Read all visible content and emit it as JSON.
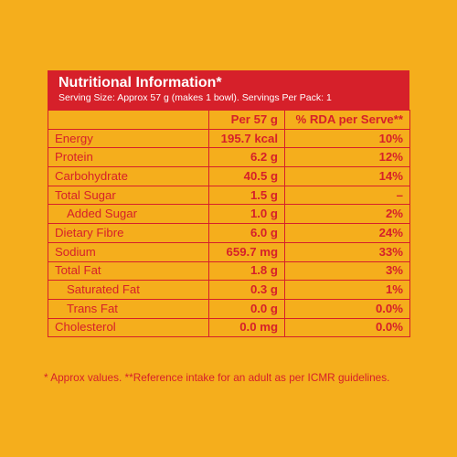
{
  "panel": {
    "title": "Nutritional Information*",
    "serving_info": "Serving Size: Approx 57 g (makes 1 bowl). Servings Per Pack: 1"
  },
  "table": {
    "columns": [
      "",
      "Per 57 g",
      "% RDA per Serve**"
    ],
    "rows": [
      {
        "label": "Energy",
        "per_serving": "195.7 kcal",
        "rda": "10%",
        "indent": false
      },
      {
        "label": "Protein",
        "per_serving": "6.2 g",
        "rda": "12%",
        "indent": false
      },
      {
        "label": "Carbohydrate",
        "per_serving": "40.5 g",
        "rda": "14%",
        "indent": false
      },
      {
        "label": "Total Sugar",
        "per_serving": "1.5 g",
        "rda": "–",
        "indent": false
      },
      {
        "label": "Added Sugar",
        "per_serving": "1.0 g",
        "rda": "2%",
        "indent": true
      },
      {
        "label": "Dietary Fibre",
        "per_serving": "6.0 g",
        "rda": "24%",
        "indent": false
      },
      {
        "label": "Sodium",
        "per_serving": "659.7 mg",
        "rda": "33%",
        "indent": false
      },
      {
        "label": "Total Fat",
        "per_serving": "1.8 g",
        "rda": "3%",
        "indent": false
      },
      {
        "label": "Saturated Fat",
        "per_serving": "0.3 g",
        "rda": "1%",
        "indent": true
      },
      {
        "label": "Trans Fat",
        "per_serving": "0.0 g",
        "rda": "0.0%",
        "indent": true
      },
      {
        "label": "Cholesterol",
        "per_serving": "0.0 mg",
        "rda": "0.0%",
        "indent": false
      }
    ]
  },
  "footnote": "* Approx values. **Reference intake for an adult as per ICMR guidelines.",
  "colors": {
    "background": "#f5ae1c",
    "accent": "#d6202a",
    "header_text": "#ffffff"
  }
}
